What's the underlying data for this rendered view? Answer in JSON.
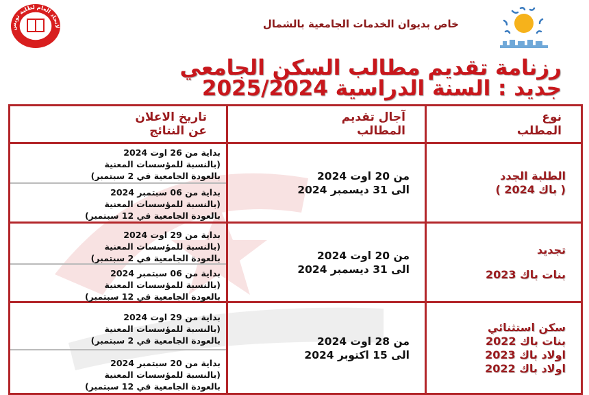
{
  "header": {
    "organization_logo_text": "الاتحاد العام لطلبة تونس",
    "subtitle": "خاص بديوان الخدمات الجامعية بالشمال",
    "title_line1": "رزنامة تقديم مطالب السكن الجامعي",
    "title_line2": "جديد : السنة الدراسية 2025/2024"
  },
  "colors": {
    "accent": "#c8171c",
    "border": "#b3262a",
    "header_text": "#9b1b1e"
  },
  "table": {
    "columns": [
      {
        "line1": "نوع",
        "line2": "المطلب"
      },
      {
        "line1": "آجال تقديم",
        "line2": "المطالب"
      },
      {
        "line1": "تاريخ الاعلان",
        "line2": "عن النتائج"
      }
    ],
    "rows": [
      {
        "type": [
          "الطلبة الجدد",
          "( باك 2024 )"
        ],
        "deadline": [
          "من 20 اوت 2024",
          "الى   31 ديسمبر 2024"
        ],
        "announcements": [
          [
            "بداية من 26 اوت 2024",
            "(بالنسبة للمؤسسات المعنية",
            "بالعودة الجامعية في 2 سبتمبر)"
          ],
          [
            "بداية من 06 سبتمبر 2024",
            "(بالنسبة للمؤسسات المعنية",
            "بالعودة الجامعية في 12 سبتمبر)"
          ]
        ]
      },
      {
        "type": [
          "تجديد",
          "بنات باك 2023"
        ],
        "deadline": [
          "من 20 اوت 2024",
          "الى   31 ديسمبر 2024"
        ],
        "announcements": [
          [
            "بداية من 29 اوت 2024",
            "(بالنسبة للمؤسسات المعنية",
            "بالعودة الجامعية في 2 سبتمبر)"
          ],
          [
            "بداية من 06 سبتمبر 2024",
            "(بالنسبة للمؤسسات المعنية",
            "بالعودة الجامعية في 12 سبتمبر)"
          ]
        ]
      },
      {
        "type": [
          "سكن استثنائي",
          "بنات  باك 2022",
          "اولاد باك 2023",
          "اولاد باك 2022"
        ],
        "deadline": [
          "من 28 اوت 2024",
          "الى   15 اكتوبر 2024"
        ],
        "announcements": [
          [
            "بداية من 29 اوت 2024",
            "(بالنسبة للمؤسسات المعنية",
            "بالعودة الجامعية في 2 سبتمبر)"
          ],
          [
            "بداية من 20 سبتمبر 2024",
            "(بالنسبة للمؤسسات المعنية",
            "بالعودة الجامعية في 12 سبتمبر)"
          ]
        ]
      }
    ]
  }
}
